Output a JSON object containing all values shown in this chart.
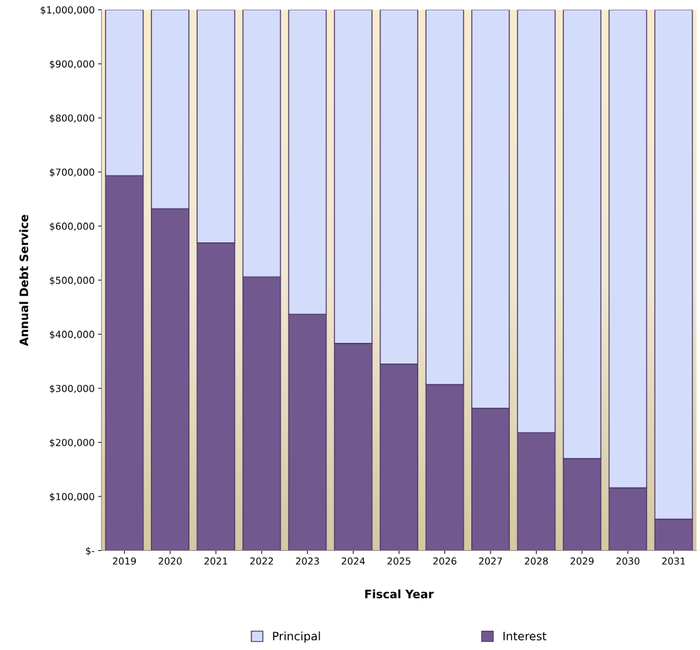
{
  "chart_data": {
    "type": "bar",
    "stacked": true,
    "xlabel": "Fiscal Year",
    "ylabel": "Annual Debt Service",
    "categories": [
      "2019",
      "2020",
      "2021",
      "2022",
      "2023",
      "2024",
      "2025",
      "2026",
      "2027",
      "2028",
      "2029",
      "2030",
      "2031"
    ],
    "series": [
      {
        "name": "Interest",
        "color": "#71588f",
        "values": [
          693000,
          632000,
          569000,
          506000,
          437000,
          383000,
          345000,
          307000,
          263000,
          218000,
          170000,
          116000,
          58000
        ]
      },
      {
        "name": "Principal",
        "color": "#d4dcfc",
        "values": [
          307000,
          368000,
          431000,
          494000,
          563000,
          617000,
          655000,
          693000,
          737000,
          782000,
          830000,
          884000,
          942000
        ]
      }
    ],
    "ylim": [
      0,
      1000000
    ],
    "yticks": [
      {
        "value": 0,
        "label": "$-"
      },
      {
        "value": 100000,
        "label": "$100,000"
      },
      {
        "value": 200000,
        "label": "$200,000"
      },
      {
        "value": 300000,
        "label": "$300,000"
      },
      {
        "value": 400000,
        "label": "$400,000"
      },
      {
        "value": 500000,
        "label": "$500,000"
      },
      {
        "value": 600000,
        "label": "$600,000"
      },
      {
        "value": 700000,
        "label": "$700,000"
      },
      {
        "value": 800000,
        "label": "$800,000"
      },
      {
        "value": 900000,
        "label": "$900,000"
      },
      {
        "value": 1000000,
        "label": "$1,000,000"
      }
    ],
    "grid": false,
    "legend": "bottom"
  }
}
